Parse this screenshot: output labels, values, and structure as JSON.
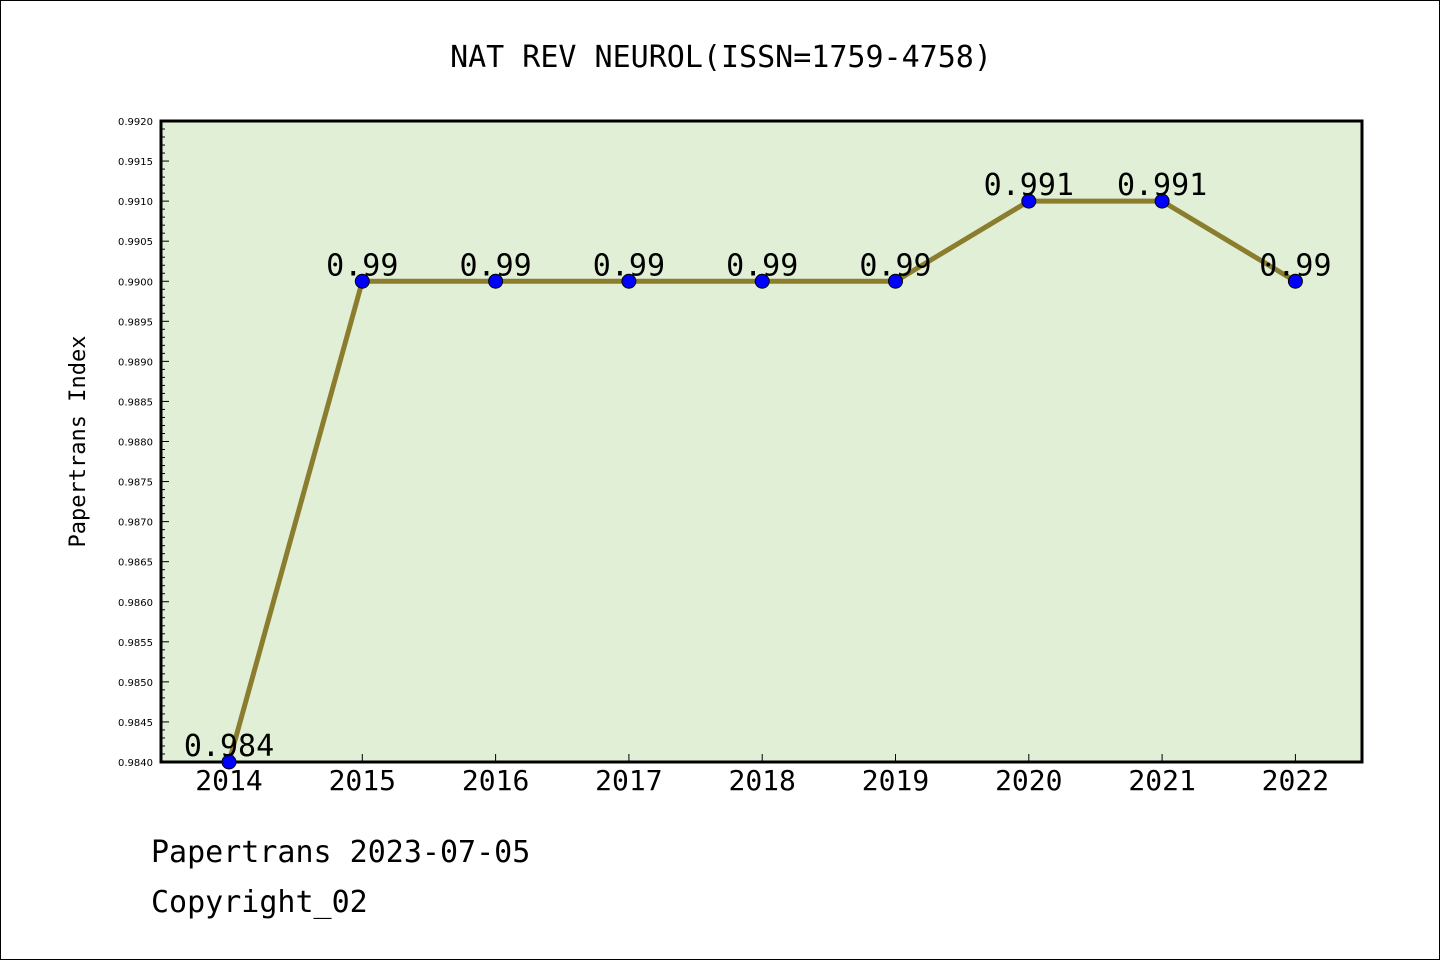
{
  "chart_data": {
    "type": "line",
    "title": "NAT REV NEUROL(ISSN=1759-4758)",
    "ylabel": "Papertrans Index",
    "xlabel": "",
    "categories": [
      "2014",
      "2015",
      "2016",
      "2017",
      "2018",
      "2019",
      "2020",
      "2021",
      "2022"
    ],
    "series": [
      {
        "values": [
          0.984,
          0.99,
          0.99,
          0.99,
          0.99,
          0.99,
          0.991,
          0.991,
          0.99
        ],
        "labels": [
          "0.984",
          "0.99",
          "0.99",
          "0.99",
          "0.99",
          "0.99",
          "0.991",
          "0.991",
          "0.99"
        ]
      }
    ],
    "ylim": [
      0.984,
      0.992
    ],
    "yticks": [
      "0.9840",
      "0.9845",
      "0.9850",
      "0.9855",
      "0.9860",
      "0.9865",
      "0.9870",
      "0.9875",
      "0.9880",
      "0.9885",
      "0.9890",
      "0.9895",
      "0.9900",
      "0.9905",
      "0.9910",
      "0.9915",
      "0.9920"
    ],
    "grid": false,
    "colors": {
      "plot_background": "#e1efd6",
      "line": "#8b7d2e",
      "marker": "#0000ff"
    }
  },
  "footer": {
    "line1": "Papertrans 2023-07-05",
    "line2": "Copyright_02"
  }
}
